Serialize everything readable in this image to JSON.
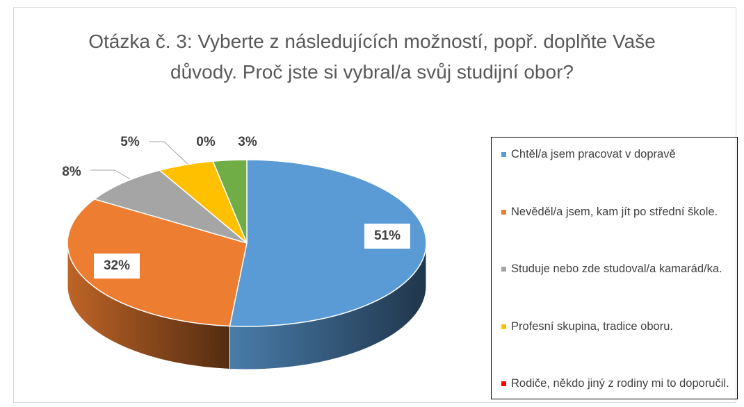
{
  "chart_data": {
    "type": "pie",
    "title": "Otázka č. 3: Vyberte z následujících možností, popř. doplňte Vaše důvody. Proč jste si vybral/a svůj studijní obor?",
    "categories": [
      "Chtěl/a jsem pracovat v dopravě",
      "Nevěděl/a jsem, kam jít po střední škole.",
      "Studuje nebo zde studoval/a kamarád/ka.",
      "Profesní skupina, tradice oboru.",
      "Rodiče, někdo jiný z rodiny mi to doporučil.",
      null
    ],
    "values": [
      51,
      32,
      8,
      5,
      0,
      3
    ],
    "value_labels": [
      "51%",
      "32%",
      "8%",
      "5%",
      "0%",
      "3%"
    ],
    "colors": [
      "#5b9bd5",
      "#ed7d31",
      "#a5a5a5",
      "#ffc000",
      "#ff0000",
      "#70ad47"
    ],
    "legend": "right"
  }
}
